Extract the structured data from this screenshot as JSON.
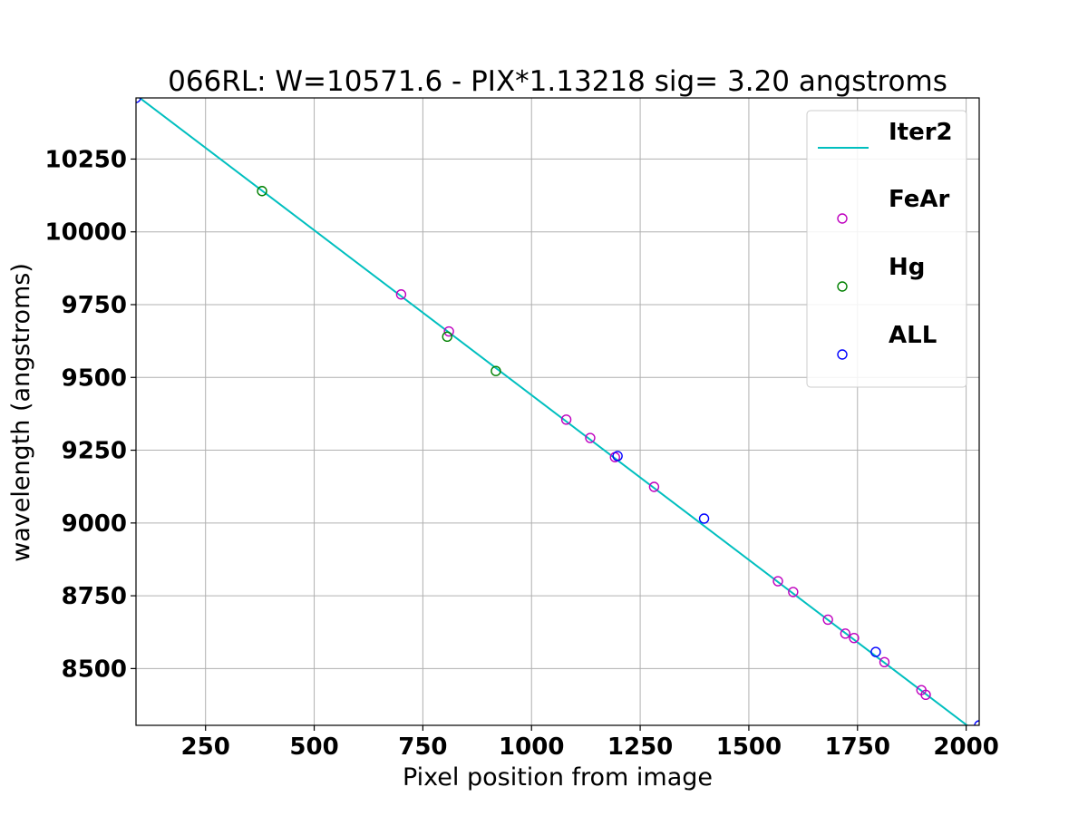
{
  "chart_data": {
    "type": "scatter",
    "title": "066RL: W=10571.6 - PIX*1.13218  sig=  3.20 angstroms",
    "xlabel": "Pixel position from image",
    "ylabel": "wavelength (angstroms)",
    "xlim": [
      90,
      2030
    ],
    "ylim": [
      8305,
      10460
    ],
    "xticks": [
      "250",
      "500",
      "750",
      "1000",
      "1250",
      "1500",
      "1750",
      "2000"
    ],
    "yticks": [
      "8500",
      "8750",
      "9000",
      "9250",
      "9500",
      "9750",
      "10000",
      "10250"
    ],
    "grid": true,
    "legend_position": "top-right",
    "fit": {
      "name": "Iter2",
      "color": "#00bfbf",
      "intercept": 10571.6,
      "slope": -1.13218
    },
    "series": [
      {
        "name": "FeAr",
        "color": "#bf00bf",
        "points": [
          [
            700,
            9785
          ],
          [
            810,
            9658
          ],
          [
            1080,
            9355
          ],
          [
            1135,
            9292
          ],
          [
            1192,
            9226
          ],
          [
            1282,
            9124
          ],
          [
            1567,
            8800
          ],
          [
            1602,
            8763
          ],
          [
            1682,
            8668
          ],
          [
            1722,
            8620
          ],
          [
            1742,
            8605
          ],
          [
            1812,
            8522
          ],
          [
            1897,
            8426
          ],
          [
            1907,
            8410
          ]
        ]
      },
      {
        "name": "Hg",
        "color": "#008000",
        "points": [
          [
            380,
            10140
          ],
          [
            806,
            9640
          ],
          [
            918,
            9522
          ]
        ]
      },
      {
        "name": "ALL",
        "color": "#0000ff",
        "points": [
          [
            1198,
            9230
          ],
          [
            1397,
            9015
          ],
          [
            1792,
            8557
          ],
          [
            2030,
            8305
          ],
          [
            90,
            10460
          ]
        ]
      }
    ]
  }
}
